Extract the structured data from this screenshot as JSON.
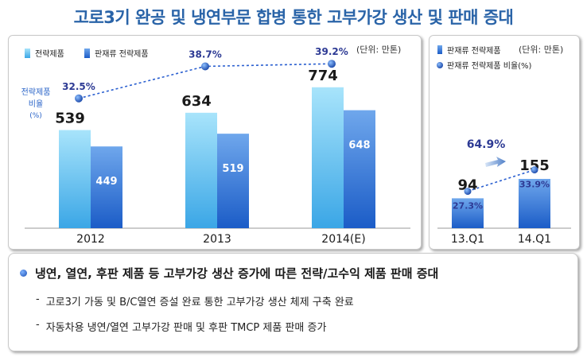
{
  "title": "고로3기 완공 및 냉연부문 합병 통한 고부가강 생산 및 판매 증대",
  "colors": {
    "strategic_bar_top": "#a8e4fb",
    "strategic_bar_bottom": "#3aa6e6",
    "sales_bar_top": "#6fa7ec",
    "sales_bar_bottom": "#1b5cc7",
    "ratio_label": "#2d3a94",
    "ratio_line": "#2a5fd0"
  },
  "chart_data": [
    {
      "type": "bar",
      "unit": "(단위: 만톤)",
      "legend": [
        "전략제품",
        "판재류 전략제품"
      ],
      "ratio_axis_label": [
        "전략제품",
        "비율",
        "(%)"
      ],
      "categories": [
        "2012",
        "2013",
        "2014(E)"
      ],
      "series": [
        {
          "name": "전략제품",
          "values": [
            539,
            634,
            774
          ]
        },
        {
          "name": "판재류 전략제품",
          "values": [
            449,
            519,
            648
          ]
        }
      ],
      "ratio": {
        "name": "전략제품 비율",
        "values": [
          32.5,
          38.7,
          39.2
        ],
        "labels": [
          "32.5%",
          "38.7%",
          "39.2%"
        ]
      },
      "ylim": [
        0,
        850
      ]
    },
    {
      "type": "bar",
      "unit": "(단위: 만톤)",
      "legend": [
        "판재류 전략제품",
        "판재류 전략제품 비율(%)"
      ],
      "categories": [
        "13.Q1",
        "14.Q1"
      ],
      "series": [
        {
          "name": "판재류 전략제품",
          "values": [
            94,
            155
          ]
        }
      ],
      "ratio": {
        "name": "판재류 전략제품 비율",
        "values": [
          27.3,
          33.9
        ],
        "labels": [
          "27.3%",
          "33.9%"
        ]
      },
      "growth_label": "64.9%",
      "ylim": [
        0,
        180
      ]
    }
  ],
  "notes": {
    "main": "냉연, 열연, 후판 제품 등 고부가강 생산 증가에 따른 전략/고수익 제품 판매 증대",
    "items": [
      "고로3기 가동 및 B/C열연 증설 완료 통한 고부가강 생산 체제 구축 완료",
      "자동차용 냉연/열연 고부가강 판매 및 후판 TMCP 제품 판매 증가"
    ]
  }
}
